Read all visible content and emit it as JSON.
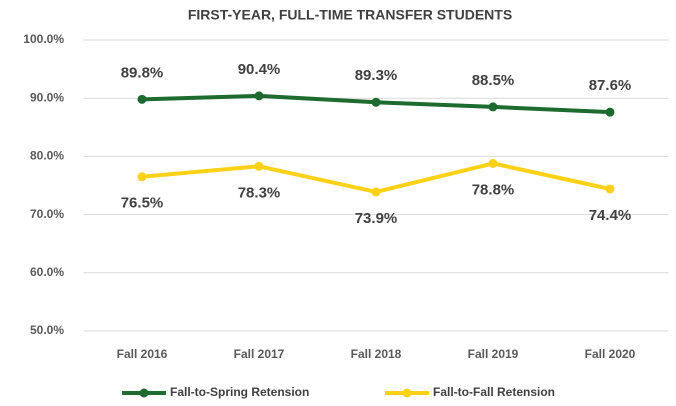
{
  "chart_data": {
    "type": "line",
    "title": "FIRST-YEAR, FULL-TIME TRANSFER STUDENTS",
    "categories": [
      "Fall 2016",
      "Fall 2017",
      "Fall 2018",
      "Fall 2019",
      "Fall 2020"
    ],
    "series": [
      {
        "name": "Fall-to-Spring Retension",
        "color": "#1d6b2f",
        "values": [
          89.8,
          90.4,
          89.3,
          88.5,
          87.6
        ],
        "value_labels": [
          "89.8%",
          "90.4%",
          "89.3%",
          "88.5%",
          "87.6%"
        ]
      },
      {
        "name": "Fall-to-Fall Retension",
        "color": "#fcd116",
        "values": [
          76.5,
          78.3,
          73.9,
          78.8,
          74.4
        ],
        "value_labels": [
          "76.5%",
          "78.3%",
          "73.9%",
          "78.8%",
          "74.4%"
        ]
      }
    ],
    "ylim": [
      50,
      100
    ],
    "yticks": [
      {
        "value": 50,
        "label": "50.0%"
      },
      {
        "value": 60,
        "label": "60.0%"
      },
      {
        "value": 70,
        "label": "70.0%"
      },
      {
        "value": 80,
        "label": "80.0%"
      },
      {
        "value": 90,
        "label": "90.0%"
      },
      {
        "value": 100,
        "label": "100.0%"
      }
    ],
    "grid": true,
    "legend": "bottom"
  }
}
